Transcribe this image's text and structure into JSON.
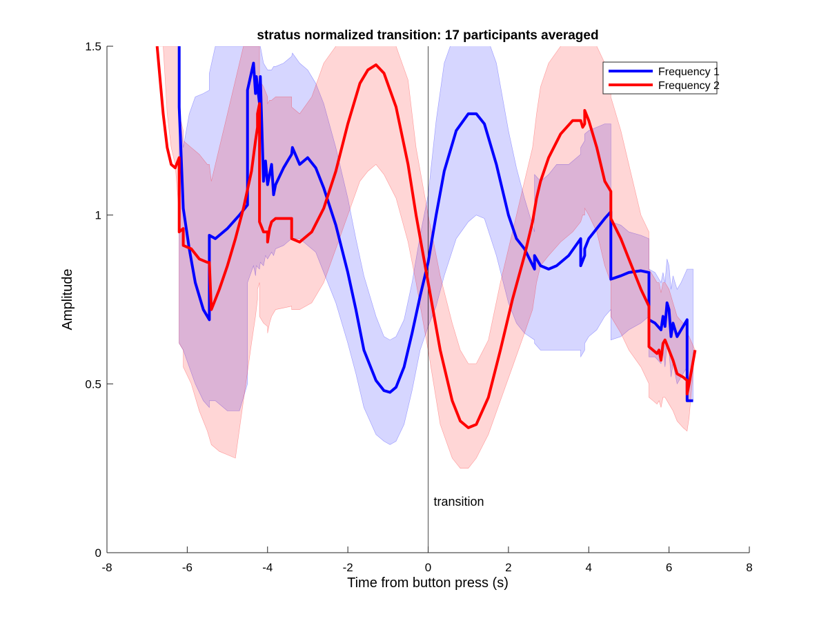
{
  "chart_data": {
    "type": "line",
    "title": "stratus normalized transition: 17 participants averaged",
    "xlabel": "Time from button press (s)",
    "ylabel": "Amplitude",
    "xlim": [
      -8,
      8
    ],
    "ylim": [
      0,
      1.5
    ],
    "xticks": [
      -8,
      -6,
      -4,
      -2,
      0,
      2,
      4,
      6,
      8
    ],
    "xtick_labels": [
      "-8",
      "-6",
      "-4",
      "-2",
      "0",
      "2",
      "4",
      "6",
      "8"
    ],
    "yticks": [
      0,
      0.5,
      1,
      1.5
    ],
    "ytick_labels": [
      "0",
      "0.5",
      "1",
      "1.5"
    ],
    "grid": false,
    "legend_position": "top-right",
    "annotation": {
      "x": 0,
      "text": "transition"
    },
    "series": [
      {
        "name": "Frequency 1",
        "color": "#0000ff",
        "band_color": "#0000ff",
        "x": [
          -6.2,
          -6.2,
          -6.1,
          -5.95,
          -5.8,
          -5.6,
          -5.45,
          -5.45,
          -5.3,
          -5.0,
          -4.7,
          -4.5,
          -4.5,
          -4.35,
          -4.3,
          -4.28,
          -4.2,
          -4.18,
          -4.1,
          -4.05,
          -4.0,
          -3.9,
          -3.85,
          -3.8,
          -3.6,
          -3.5,
          -3.4,
          -3.38,
          -3.2,
          -3.0,
          -2.8,
          -2.6,
          -2.3,
          -2.0,
          -1.8,
          -1.6,
          -1.3,
          -1.1,
          -0.95,
          -0.8,
          -0.6,
          -0.4,
          -0.2,
          0,
          0.2,
          0.4,
          0.7,
          1.0,
          1.2,
          1.4,
          1.7,
          2.0,
          2.2,
          2.4,
          2.65,
          2.65,
          2.8,
          3.0,
          3.2,
          3.5,
          3.8,
          3.8,
          3.9,
          3.9,
          4.0,
          4.2,
          4.4,
          4.55,
          4.55,
          4.8,
          5.0,
          5.3,
          5.5,
          5.5,
          5.65,
          5.8,
          5.85,
          5.9,
          5.95,
          6.0,
          6.05,
          6.1,
          6.2,
          6.3,
          6.45,
          6.45,
          6.55,
          6.6
        ],
        "values": [
          1.5,
          1.32,
          1.02,
          0.9,
          0.8,
          0.72,
          0.69,
          0.94,
          0.93,
          0.96,
          1.0,
          1.03,
          1.37,
          1.45,
          1.36,
          1.41,
          1.33,
          1.41,
          1.1,
          1.16,
          1.09,
          1.15,
          1.06,
          1.09,
          1.14,
          1.16,
          1.18,
          1.2,
          1.15,
          1.17,
          1.14,
          1.08,
          0.97,
          0.83,
          0.72,
          0.6,
          0.51,
          0.48,
          0.475,
          0.49,
          0.55,
          0.65,
          0.76,
          0.86,
          1.0,
          1.13,
          1.25,
          1.3,
          1.3,
          1.27,
          1.15,
          1.0,
          0.93,
          0.9,
          0.84,
          0.88,
          0.85,
          0.84,
          0.85,
          0.88,
          0.93,
          0.85,
          0.88,
          0.9,
          0.93,
          0.96,
          0.99,
          1.01,
          0.81,
          0.82,
          0.83,
          0.835,
          0.83,
          0.69,
          0.68,
          0.66,
          0.7,
          0.67,
          0.74,
          0.72,
          0.64,
          0.68,
          0.64,
          0.66,
          0.69,
          0.45,
          0.45,
          0.45
        ],
        "upper": [
          1.5,
          1.32,
          1.2,
          1.3,
          1.35,
          1.36,
          1.37,
          1.42,
          1.5,
          1.5,
          1.5,
          1.5,
          1.5,
          1.5,
          1.5,
          1.5,
          1.5,
          1.5,
          1.45,
          1.44,
          1.43,
          1.43,
          1.44,
          1.44,
          1.45,
          1.46,
          1.47,
          1.48,
          1.45,
          1.43,
          1.39,
          1.33,
          1.2,
          1.05,
          0.93,
          0.82,
          0.7,
          0.64,
          0.63,
          0.64,
          0.69,
          0.8,
          0.94,
          1.06,
          1.28,
          1.45,
          1.55,
          1.57,
          1.55,
          1.55,
          1.45,
          1.25,
          1.14,
          1.05,
          0.95,
          1.12,
          1.1,
          1.12,
          1.15,
          1.15,
          1.18,
          1.2,
          1.22,
          1.24,
          1.25,
          1.26,
          1.27,
          1.27,
          0.98,
          0.97,
          0.95,
          0.94,
          0.93,
          0.84,
          0.83,
          0.8,
          0.83,
          0.8,
          0.87,
          0.85,
          0.78,
          0.82,
          0.78,
          0.8,
          0.84,
          0.84,
          0.84,
          0.84
        ],
        "lower": [
          0.62,
          0.62,
          0.6,
          0.55,
          0.5,
          0.45,
          0.43,
          0.45,
          0.45,
          0.42,
          0.42,
          0.5,
          0.8,
          0.85,
          0.82,
          0.85,
          0.84,
          0.86,
          0.85,
          0.88,
          0.87,
          0.89,
          0.88,
          0.9,
          0.91,
          0.92,
          0.93,
          0.93,
          0.93,
          0.91,
          0.89,
          0.83,
          0.74,
          0.62,
          0.53,
          0.43,
          0.35,
          0.33,
          0.32,
          0.33,
          0.38,
          0.48,
          0.6,
          0.67,
          0.73,
          0.82,
          0.93,
          0.98,
          1.0,
          0.99,
          0.88,
          0.74,
          0.68,
          0.65,
          0.63,
          0.62,
          0.6,
          0.6,
          0.6,
          0.6,
          0.6,
          0.58,
          0.6,
          0.62,
          0.64,
          0.66,
          0.7,
          0.72,
          0.63,
          0.64,
          0.66,
          0.68,
          0.7,
          0.58,
          0.58,
          0.56,
          0.6,
          0.55,
          0.62,
          0.6,
          0.52,
          0.56,
          0.5,
          0.52,
          0.55,
          0.45,
          0.45,
          0.45
        ]
      },
      {
        "name": "Frequency 2",
        "color": "#ff0000",
        "band_color": "#ff0000",
        "x": [
          -6.75,
          -6.6,
          -6.5,
          -6.4,
          -6.3,
          -6.2,
          -6.2,
          -6.1,
          -6.1,
          -5.9,
          -5.7,
          -5.5,
          -5.45,
          -5.4,
          -5.2,
          -5.0,
          -4.8,
          -4.6,
          -4.4,
          -4.3,
          -4.25,
          -4.25,
          -4.2,
          -4.2,
          -4.1,
          -4.0,
          -4.0,
          -3.95,
          -3.9,
          -3.8,
          -3.4,
          -3.4,
          -3.2,
          -2.9,
          -2.6,
          -2.3,
          -2.0,
          -1.7,
          -1.5,
          -1.3,
          -1.1,
          -0.8,
          -0.5,
          -0.3,
          0,
          0.3,
          0.6,
          0.8,
          1.0,
          1.2,
          1.5,
          1.8,
          2.1,
          2.4,
          2.6,
          2.7,
          2.8,
          3.0,
          3.3,
          3.6,
          3.8,
          3.85,
          3.9,
          3.9,
          4.0,
          4.2,
          4.4,
          4.55,
          4.55,
          4.8,
          5.0,
          5.3,
          5.5,
          5.5,
          5.6,
          5.7,
          5.75,
          5.8,
          5.85,
          5.9,
          6.0,
          6.1,
          6.2,
          6.35,
          6.45,
          6.45,
          6.5,
          6.65
        ],
        "values": [
          1.5,
          1.3,
          1.2,
          1.15,
          1.14,
          1.17,
          0.95,
          0.96,
          0.91,
          0.9,
          0.87,
          0.86,
          0.86,
          0.72,
          0.78,
          0.85,
          0.93,
          1.02,
          1.13,
          1.22,
          1.26,
          1.3,
          1.33,
          0.98,
          0.95,
          0.95,
          0.92,
          0.96,
          0.98,
          0.99,
          0.99,
          0.93,
          0.92,
          0.95,
          1.02,
          1.13,
          1.27,
          1.39,
          1.43,
          1.445,
          1.42,
          1.32,
          1.15,
          1.0,
          0.8,
          0.6,
          0.45,
          0.39,
          0.37,
          0.38,
          0.46,
          0.6,
          0.75,
          0.88,
          0.98,
          1.05,
          1.1,
          1.17,
          1.24,
          1.28,
          1.28,
          1.26,
          1.27,
          1.31,
          1.28,
          1.2,
          1.1,
          1.07,
          0.99,
          0.93,
          0.87,
          0.78,
          0.73,
          0.61,
          0.6,
          0.59,
          0.6,
          0.57,
          0.62,
          0.63,
          0.6,
          0.57,
          0.53,
          0.52,
          0.51,
          0.47,
          0.5,
          0.6
        ],
        "upper": [
          1.5,
          1.5,
          1.5,
          1.5,
          1.5,
          1.5,
          1.3,
          1.25,
          1.22,
          1.2,
          1.18,
          1.15,
          1.15,
          1.1,
          1.2,
          1.3,
          1.4,
          1.5,
          1.5,
          1.5,
          1.5,
          1.5,
          1.5,
          1.4,
          1.38,
          1.35,
          1.33,
          1.34,
          1.34,
          1.35,
          1.35,
          1.32,
          1.3,
          1.35,
          1.45,
          1.5,
          1.55,
          1.55,
          1.55,
          1.55,
          1.55,
          1.5,
          1.4,
          1.2,
          1.0,
          0.82,
          0.68,
          0.6,
          0.56,
          0.56,
          0.63,
          0.8,
          0.95,
          1.1,
          1.2,
          1.3,
          1.38,
          1.45,
          1.5,
          1.55,
          1.55,
          1.55,
          1.55,
          1.55,
          1.55,
          1.5,
          1.45,
          1.42,
          1.35,
          1.25,
          1.15,
          1.0,
          0.95,
          0.84,
          0.82,
          0.8,
          0.8,
          0.77,
          0.8,
          0.8,
          0.78,
          0.74,
          0.7,
          0.68,
          0.67,
          0.65,
          0.64,
          0.6
        ],
        "lower": [
          1.5,
          1.5,
          1.3,
          1.2,
          1.15,
          1.0,
          0.62,
          0.6,
          0.55,
          0.5,
          0.42,
          0.36,
          0.34,
          0.32,
          0.3,
          0.29,
          0.28,
          0.45,
          0.62,
          0.7,
          0.75,
          0.78,
          0.8,
          0.7,
          0.68,
          0.67,
          0.65,
          0.68,
          0.7,
          0.72,
          0.73,
          0.72,
          0.72,
          0.74,
          0.8,
          0.9,
          1.0,
          1.1,
          1.13,
          1.15,
          1.12,
          1.05,
          0.92,
          0.8,
          0.6,
          0.38,
          0.28,
          0.25,
          0.25,
          0.28,
          0.35,
          0.45,
          0.55,
          0.65,
          0.72,
          0.8,
          0.85,
          0.88,
          0.92,
          0.95,
          0.98,
          1.0,
          1.0,
          1.02,
          1.0,
          0.95,
          0.85,
          0.8,
          0.7,
          0.65,
          0.6,
          0.55,
          0.5,
          0.46,
          0.45,
          0.44,
          0.45,
          0.43,
          0.46,
          0.46,
          0.44,
          0.42,
          0.39,
          0.37,
          0.36,
          0.36,
          0.4,
          0.6
        ]
      }
    ]
  }
}
